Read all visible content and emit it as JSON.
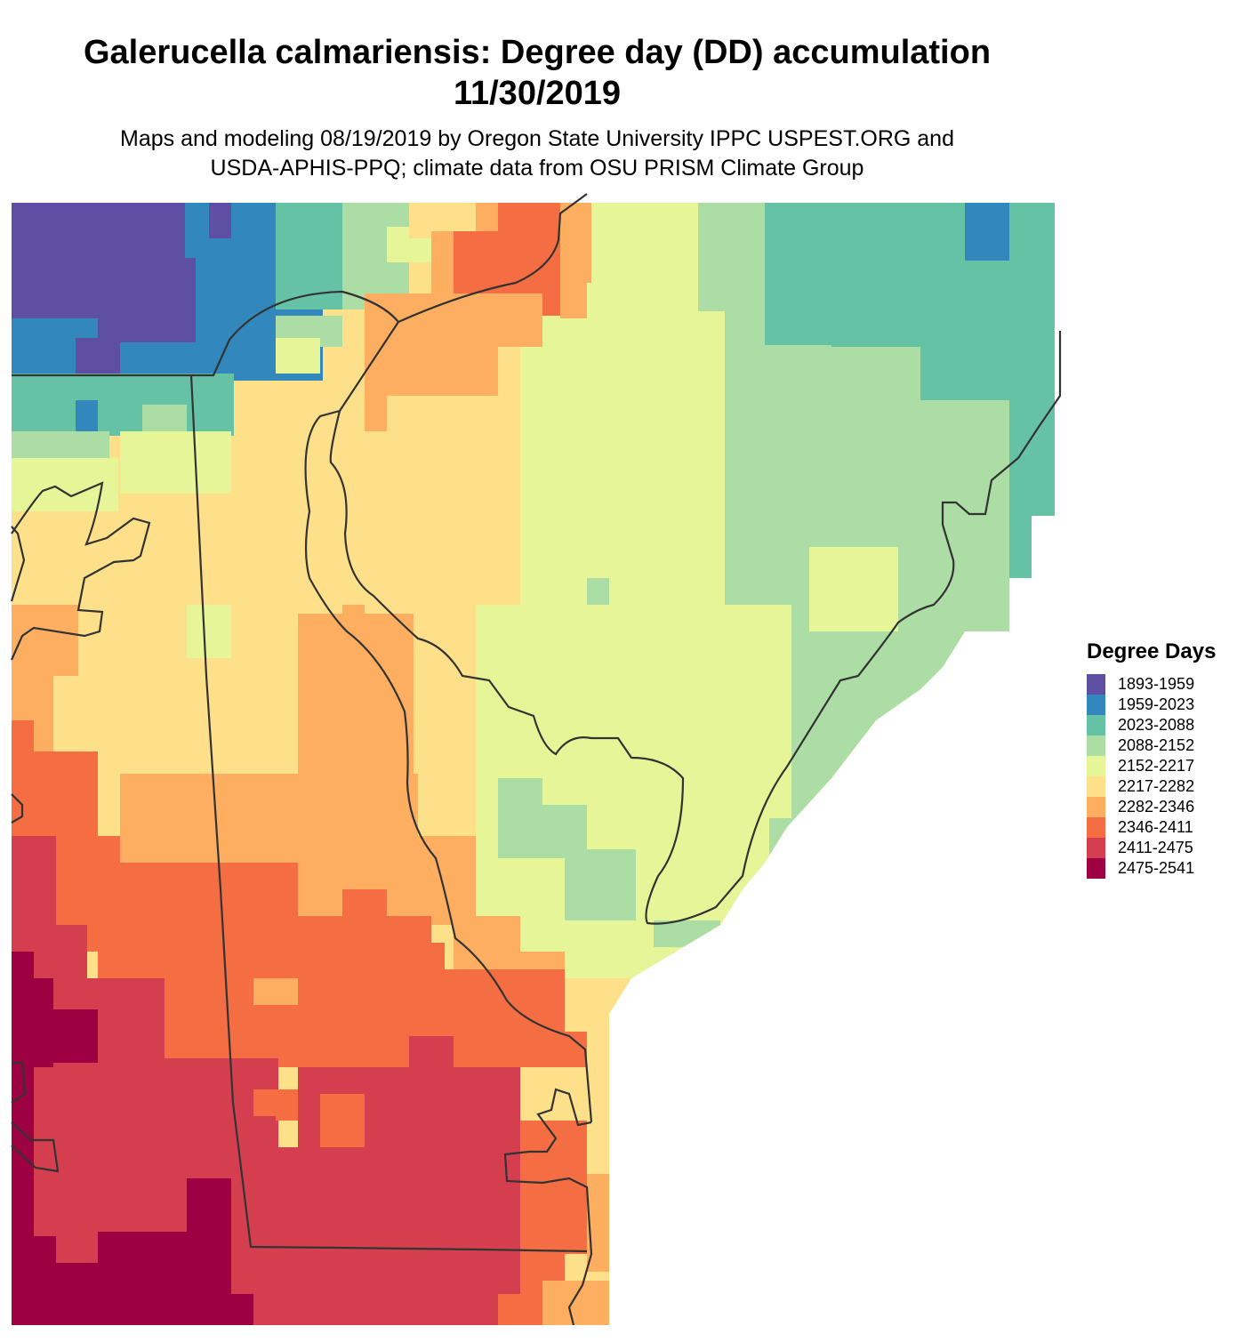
{
  "title": {
    "line1": "Galerucella calmariensis: Degree day (DD) accumulation",
    "line2": "11/30/2019"
  },
  "subtitle": {
    "line1": "Maps and modeling 08/19/2019 by Oregon State University IPPC USPEST.ORG and",
    "line2": "USDA-APHIS-PPQ; climate data from OSU PRISM Climate Group"
  },
  "legend": {
    "title": "Degree Days",
    "items": [
      {
        "label": "1893-1959",
        "color": "#5e4fa2"
      },
      {
        "label": "1959-2023",
        "color": "#3288bd"
      },
      {
        "label": "2023-2088",
        "color": "#66c2a5"
      },
      {
        "label": "2088-2152",
        "color": "#abdda4"
      },
      {
        "label": "2152-2217",
        "color": "#e6f598"
      },
      {
        "label": "2217-2282",
        "color": "#fee08b"
      },
      {
        "label": "2282-2346",
        "color": "#fdae61"
      },
      {
        "label": "2346-2411",
        "color": "#f46d43"
      },
      {
        "label": "2411-2475",
        "color": "#d53e4f"
      },
      {
        "label": "2475-2541",
        "color": "#9e0142"
      }
    ]
  },
  "map": {
    "boundary_color": "#333333"
  }
}
